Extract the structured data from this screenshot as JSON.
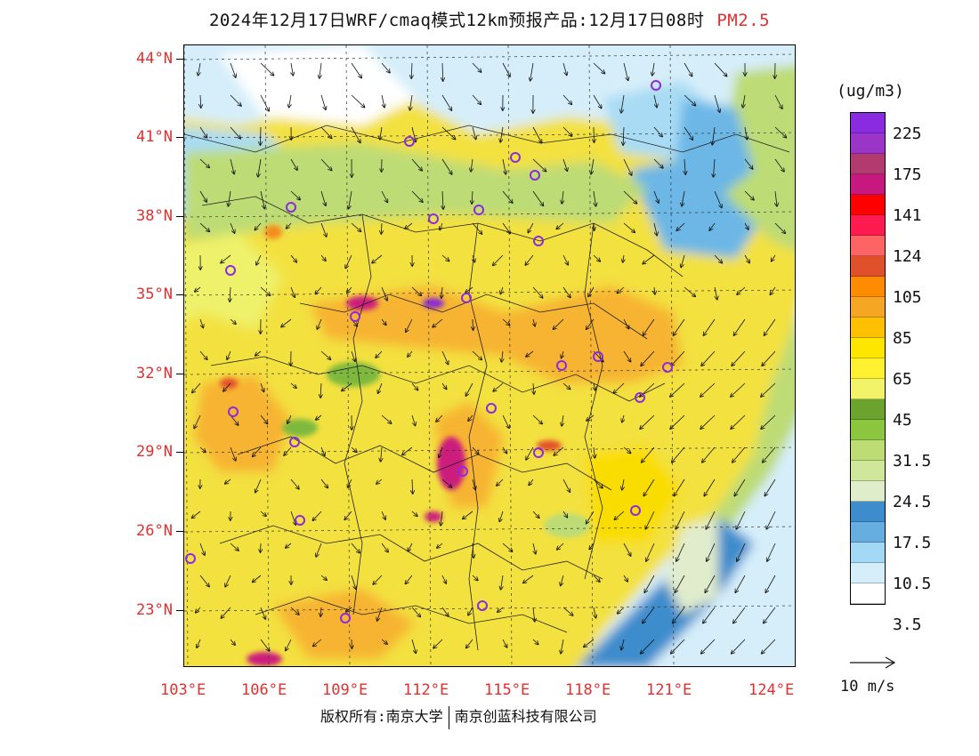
{
  "title": {
    "main": "2024年12月17日WRF/cmaq模式12km预报产品:12月17日08时",
    "pollutant": "PM2.5"
  },
  "map": {
    "lat_labels": [
      "44°N",
      "41°N",
      "38°N",
      "35°N",
      "32°N",
      "29°N",
      "26°N",
      "23°N"
    ],
    "lon_labels": [
      "103°E",
      "106°E",
      "109°E",
      "112°E",
      "115°E",
      "118°E",
      "121°E",
      "124°E"
    ],
    "field_colors": {
      "clean": "#ffffff",
      "low": "#d6eefa",
      "lowmid": "#a9dcf4",
      "blue": "#6cb7e6",
      "darkblue": "#3d8ccc",
      "pale": "#e0eccc",
      "green": "#bddc74",
      "dgreen": "#7eb93c",
      "yellowish": "#eef26a",
      "yellow": "#f3e140",
      "yellow2": "#fadd00",
      "orange1": "#f7b431",
      "orange2": "#f58c1e",
      "red": "#e4502b",
      "magenta": "#cc1a7e",
      "purple": "#8a2bd2"
    },
    "city_marker_color": "#8a2be2"
  },
  "colorbar": {
    "unit": "(ug/m3)",
    "colors": [
      "#8a2be2",
      "#9b35c8",
      "#b23a6e",
      "#c7187f",
      "#ff0000",
      "#ff1a50",
      "#ff6464",
      "#e0502a",
      "#ff8c00",
      "#f5a623",
      "#ffc000",
      "#ffe600",
      "#fff030",
      "#f3f36a",
      "#6aa32e",
      "#8cc63f",
      "#bddc74",
      "#cfe79a",
      "#dfedcb",
      "#3d8ccc",
      "#67aee0",
      "#a3d9f5",
      "#d4eefa",
      "#ffffff"
    ],
    "labels": [
      "225",
      "175",
      "141",
      "124",
      "105",
      "85",
      "65",
      "45",
      "31.5",
      "24.5",
      "17.5",
      "10.5",
      "3.5"
    ]
  },
  "vector_legend": {
    "label": "10 m/s"
  },
  "credit": {
    "left": "版权所有:南京大学",
    "right": "南京创蓝科技有限公司"
  }
}
